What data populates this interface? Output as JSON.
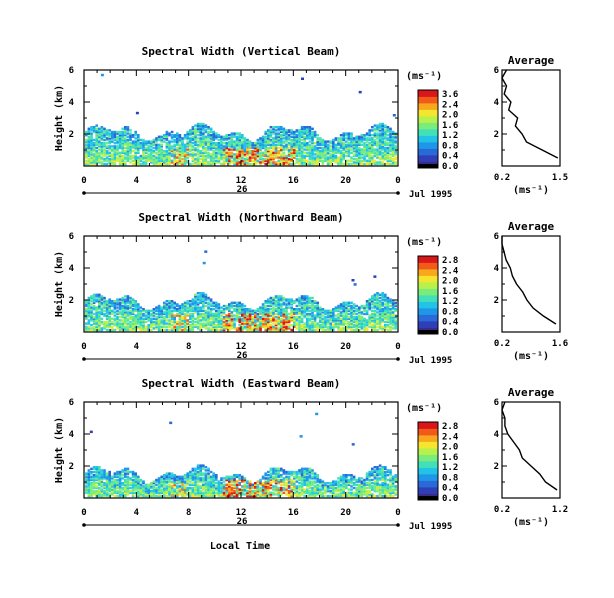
{
  "figure": {
    "xlabel": "Local Time",
    "date_note": "Jul 1995",
    "day_label": "26"
  },
  "colors": {
    "scale": [
      "#3a2a8a",
      "#2f3fb8",
      "#2a69d8",
      "#1e97e8",
      "#22c3e6",
      "#42e0b8",
      "#79ec7c",
      "#b8f04c",
      "#f4e62e",
      "#f9a81e",
      "#f25a1a",
      "#d9171a"
    ]
  },
  "chart_data": [
    {
      "type": "heatmap",
      "title": "Spectral Width (Vertical Beam)",
      "ylabel": "Height (km)",
      "x_ticks": [
        "0",
        "4",
        "8",
        "12",
        "16",
        "20",
        "0"
      ],
      "y_ticks": [
        "6",
        "4",
        "2"
      ],
      "xlim": [
        0,
        24
      ],
      "ylim": [
        0,
        6
      ],
      "units": "(ms⁻¹)",
      "colorbar_ticks": [
        "3.6",
        "2.4",
        "2.0",
        "1.6",
        "1.2",
        "0.8",
        "0.4",
        "0.0"
      ],
      "avg_title": "Average",
      "avg_x_ticks": [
        "0.2",
        "1.5"
      ],
      "avg_xlabel": "(ms⁻¹)",
      "avg_y_ticks": [
        "6",
        "4",
        "2"
      ],
      "avg_profile": {
        "heights": [
          0.5,
          1.0,
          1.5,
          2.0,
          2.5,
          3.0,
          3.5,
          4.0,
          4.5,
          5.0,
          5.5,
          6.0
        ],
        "values": [
          1.45,
          1.1,
          0.75,
          0.65,
          0.5,
          0.55,
          0.35,
          0.4,
          0.25,
          0.3,
          0.2,
          0.3
        ]
      },
      "echo_top_km": 2.2
    },
    {
      "type": "heatmap",
      "title": "Spectral Width (Northward Beam)",
      "ylabel": "Height (km)",
      "x_ticks": [
        "0",
        "4",
        "8",
        "12",
        "16",
        "20",
        "0"
      ],
      "y_ticks": [
        "6",
        "4",
        "2"
      ],
      "xlim": [
        0,
        24
      ],
      "ylim": [
        0,
        6
      ],
      "units": "(ms⁻¹)",
      "colorbar_ticks": [
        "2.8",
        "2.4",
        "2.0",
        "1.6",
        "1.2",
        "0.8",
        "0.4",
        "0.0"
      ],
      "avg_title": "Average",
      "avg_x_ticks": [
        "0.2",
        "1.6"
      ],
      "avg_xlabel": "(ms⁻¹)",
      "avg_y_ticks": [
        "6",
        "4",
        "2"
      ],
      "avg_profile": {
        "heights": [
          0.5,
          1.0,
          1.5,
          2.0,
          2.5,
          3.0,
          3.5,
          4.0,
          4.5,
          5.0,
          5.5,
          6.0
        ],
        "values": [
          1.5,
          1.2,
          0.95,
          0.8,
          0.7,
          0.55,
          0.45,
          0.4,
          0.3,
          0.25,
          0.2,
          0.2
        ]
      },
      "echo_top_km": 2.0
    },
    {
      "type": "heatmap",
      "title": "Spectral Width (Eastward Beam)",
      "ylabel": "Height (km)",
      "x_ticks": [
        "0",
        "4",
        "8",
        "12",
        "16",
        "20",
        "0"
      ],
      "y_ticks": [
        "6",
        "4",
        "2"
      ],
      "xlim": [
        0,
        24
      ],
      "ylim": [
        0,
        6
      ],
      "units": "(ms⁻¹)",
      "colorbar_ticks": [
        "2.8",
        "2.4",
        "2.0",
        "1.6",
        "1.2",
        "0.8",
        "0.4",
        "0.0"
      ],
      "avg_title": "Average",
      "avg_x_ticks": [
        "0.2",
        "1.2"
      ],
      "avg_xlabel": "(ms⁻¹)",
      "avg_y_ticks": [
        "6",
        "4",
        "2"
      ],
      "avg_profile": {
        "heights": [
          0.5,
          1.0,
          1.5,
          2.0,
          2.5,
          3.0,
          3.5,
          4.0,
          4.5,
          5.0,
          5.5,
          6.0
        ],
        "values": [
          1.15,
          0.95,
          0.85,
          0.7,
          0.55,
          0.5,
          0.4,
          0.3,
          0.25,
          0.25,
          0.2,
          0.25
        ]
      },
      "echo_top_km": 1.6
    }
  ]
}
